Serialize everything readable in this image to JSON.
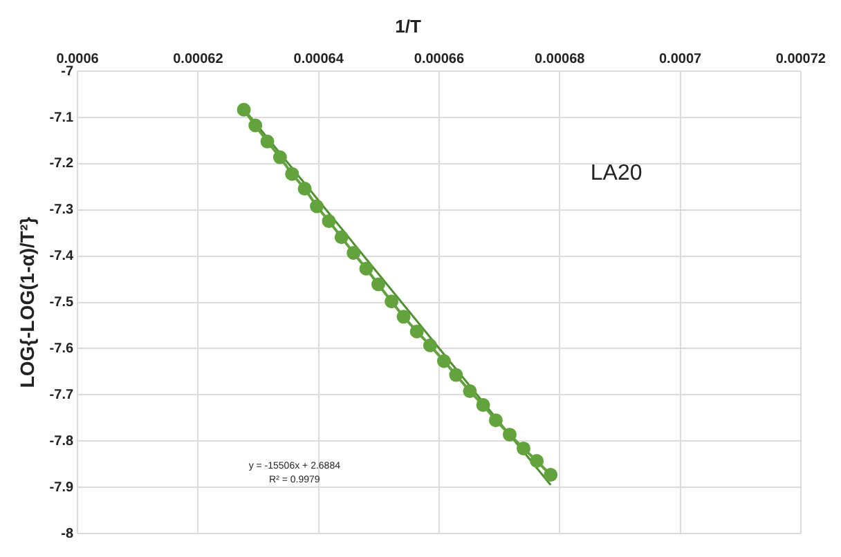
{
  "chart_data": {
    "type": "line",
    "title": "1/T",
    "ylabel": "LOG{-LOG(1-α)/T²}",
    "xlim": [
      0.0006,
      0.00072
    ],
    "xticks": [
      0.0006,
      0.00062,
      0.00064,
      0.00066,
      0.00068,
      0.0007,
      0.00072
    ],
    "ylim": [
      -8,
      -7
    ],
    "yticks": [
      -8,
      -7.9,
      -7.8,
      -7.7,
      -7.6,
      -7.5,
      -7.4,
      -7.3,
      -7.2,
      -7.1,
      -7
    ],
    "grid": true,
    "legend": false,
    "marker": "circle",
    "line_style": "solid",
    "series": [
      {
        "color": "#62a33e",
        "x": [
          0.0006276,
          0.0006295,
          0.0006315,
          0.0006336,
          0.0006356,
          0.0006377,
          0.0006397,
          0.0006417,
          0.0006438,
          0.0006458,
          0.0006479,
          0.0006499,
          0.0006521,
          0.0006541,
          0.0006563,
          0.0006585,
          0.0006608,
          0.0006628,
          0.0006651,
          0.0006673,
          0.0006694,
          0.0006717,
          0.000674,
          0.0006762,
          0.0006785
        ],
        "values": [
          -7.083,
          -7.117,
          -7.152,
          -7.186,
          -7.222,
          -7.254,
          -7.292,
          -7.324,
          -7.359,
          -7.393,
          -7.427,
          -7.461,
          -7.498,
          -7.531,
          -7.563,
          -7.593,
          -7.627,
          -7.657,
          -7.692,
          -7.722,
          -7.755,
          -7.786,
          -7.816,
          -7.843,
          -7.873
        ]
      },
      {
        "type": "line",
        "marker": "none",
        "color": "#4f8f2f",
        "x": [
          0.0006272,
          0.0006785
        ],
        "values": [
          -7.075,
          -7.895
        ]
      }
    ],
    "annotations": [
      "LA20",
      "y = -15506x + 2.6884",
      "R² = 0.9979"
    ]
  }
}
